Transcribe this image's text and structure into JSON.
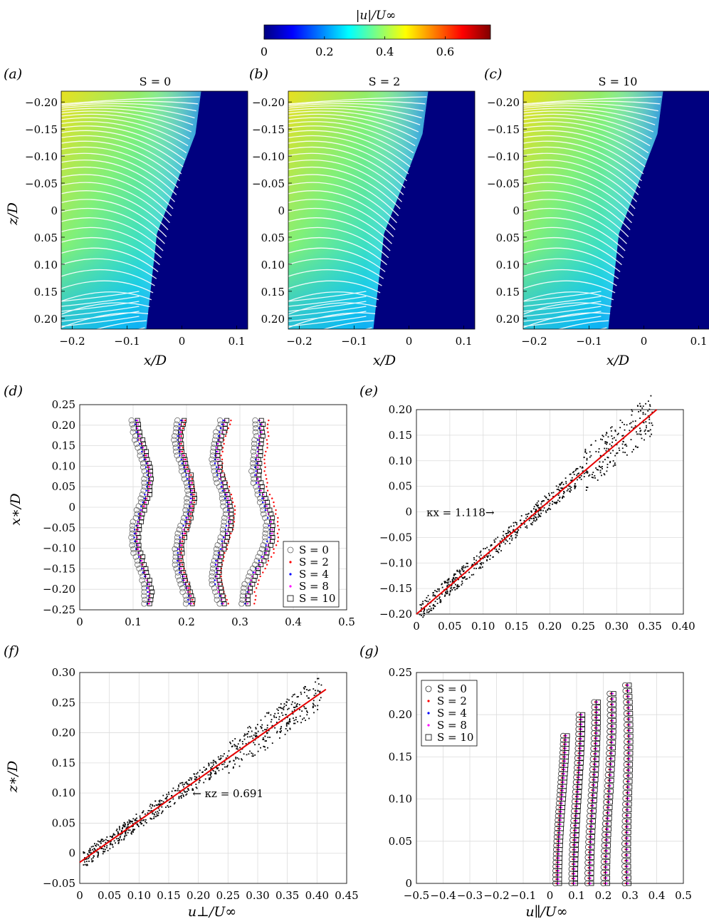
{
  "colorbar": {
    "label": "|u|/U∞",
    "ticks": [
      "0",
      "0.2",
      "0.4",
      "0.6"
    ],
    "range": [
      0,
      0.75
    ],
    "colors": [
      "#00007f",
      "#0000ff",
      "#007fff",
      "#00ffff",
      "#7fff7f",
      "#ffff00",
      "#ff7f00",
      "#ff0000",
      "#7f0000"
    ]
  },
  "panels": {
    "a": {
      "tag": "(a)",
      "title": "S = 0"
    },
    "b": {
      "tag": "(b)",
      "title": "S = 2"
    },
    "c": {
      "tag": "(c)",
      "title": "S = 10"
    },
    "d": {
      "tag": "(d)"
    },
    "e": {
      "tag": "(e)",
      "annotation": "κx = 1.118→"
    },
    "f": {
      "tag": "(f)",
      "annotation": "← κz = 0.691"
    },
    "g": {
      "tag": "(g)"
    }
  },
  "contour_axes": {
    "xlabel": "x/D",
    "ylabel": "z/D",
    "xticks": [
      "−0.2",
      "−0.1",
      "0",
      "0.1"
    ],
    "yticks": [
      "−0.20",
      "−0.15",
      "−0.10",
      "−0.05",
      "0",
      "0.05",
      "0.10",
      "0.15",
      "0.20"
    ]
  },
  "chart_data": [
    {
      "id": "d",
      "type": "scatter",
      "xlabel": "",
      "ylabel": "x∗/D",
      "xlim": [
        0,
        0.5
      ],
      "ylim": [
        -0.25,
        0.25
      ],
      "xticks": [
        "0",
        "0.1",
        "0.2",
        "0.3",
        "0.4",
        "0.5"
      ],
      "yticks": [
        "0.25",
        "0.20",
        "0.15",
        "0.10",
        "0.05",
        "0",
        "−0.05",
        "−0.10",
        "−0.15",
        "−0.20",
        "−0.25"
      ],
      "grid": true,
      "legend_position": "bottom-right",
      "legend": [
        "S = 0",
        "S = 2",
        "S = 4",
        "S = 8",
        "S = 10"
      ],
      "series_colors": [
        "#666666",
        "#ff0000",
        "#0000ff",
        "#ff00ff",
        "#000000"
      ],
      "profile_centers": [
        0.11,
        0.19,
        0.26,
        0.32
      ]
    },
    {
      "id": "e",
      "type": "scatter",
      "xlim": [
        0,
        0.4
      ],
      "ylim": [
        -0.2,
        0.2
      ],
      "xticks": [
        "0",
        "0.05",
        "0.10",
        "0.15",
        "0.20",
        "0.25",
        "0.30",
        "0.35",
        "0.40"
      ],
      "yticks": [
        "0.20",
        "0.15",
        "0.10",
        "0.05",
        "0",
        "−0.05",
        "−0.10",
        "−0.15",
        "−0.20"
      ],
      "grid": true,
      "fit_line": {
        "x": [
          0,
          0.36
        ],
        "y": [
          -0.2,
          0.2
        ]
      }
    },
    {
      "id": "f",
      "type": "scatter",
      "xlabel": "u⊥/U∞",
      "ylabel": "z∗/D",
      "xlim": [
        0,
        0.45
      ],
      "ylim": [
        -0.05,
        0.3
      ],
      "xticks": [
        "0",
        "0.05",
        "0.10",
        "0.15",
        "0.20",
        "0.25",
        "0.30",
        "0.35",
        "0.40",
        "0.45"
      ],
      "yticks": [
        "0.30",
        "0.25",
        "0.20",
        "0.15",
        "0.10",
        "0.05",
        "0",
        "−0.05"
      ],
      "grid": true,
      "fit_line": {
        "x": [
          0,
          0.415
        ],
        "y": [
          -0.015,
          0.272
        ]
      }
    },
    {
      "id": "g",
      "type": "scatter",
      "xlabel": "u∥/U∞",
      "xlim": [
        -0.5,
        0.5
      ],
      "ylim": [
        0,
        0.25
      ],
      "xticks": [
        "−0.5",
        "−0.4",
        "−0.3",
        "−0.2",
        "−0.1",
        "0",
        "0.1",
        "0.2",
        "0.3",
        "0.4",
        "0.5"
      ],
      "yticks": [
        "0.25",
        "0.20",
        "0.15",
        "0.10",
        "0.05",
        "0"
      ],
      "grid": true,
      "legend_position": "top-left",
      "legend": [
        "S = 0",
        "S = 2",
        "S = 4",
        "S = 8",
        "S = 10"
      ],
      "series_colors": [
        "#333333",
        "#ff0000",
        "#0000ff",
        "#ff00ff",
        "#000000"
      ],
      "profile_tops": [
        0.175,
        0.2,
        0.215,
        0.225,
        0.235
      ]
    }
  ]
}
